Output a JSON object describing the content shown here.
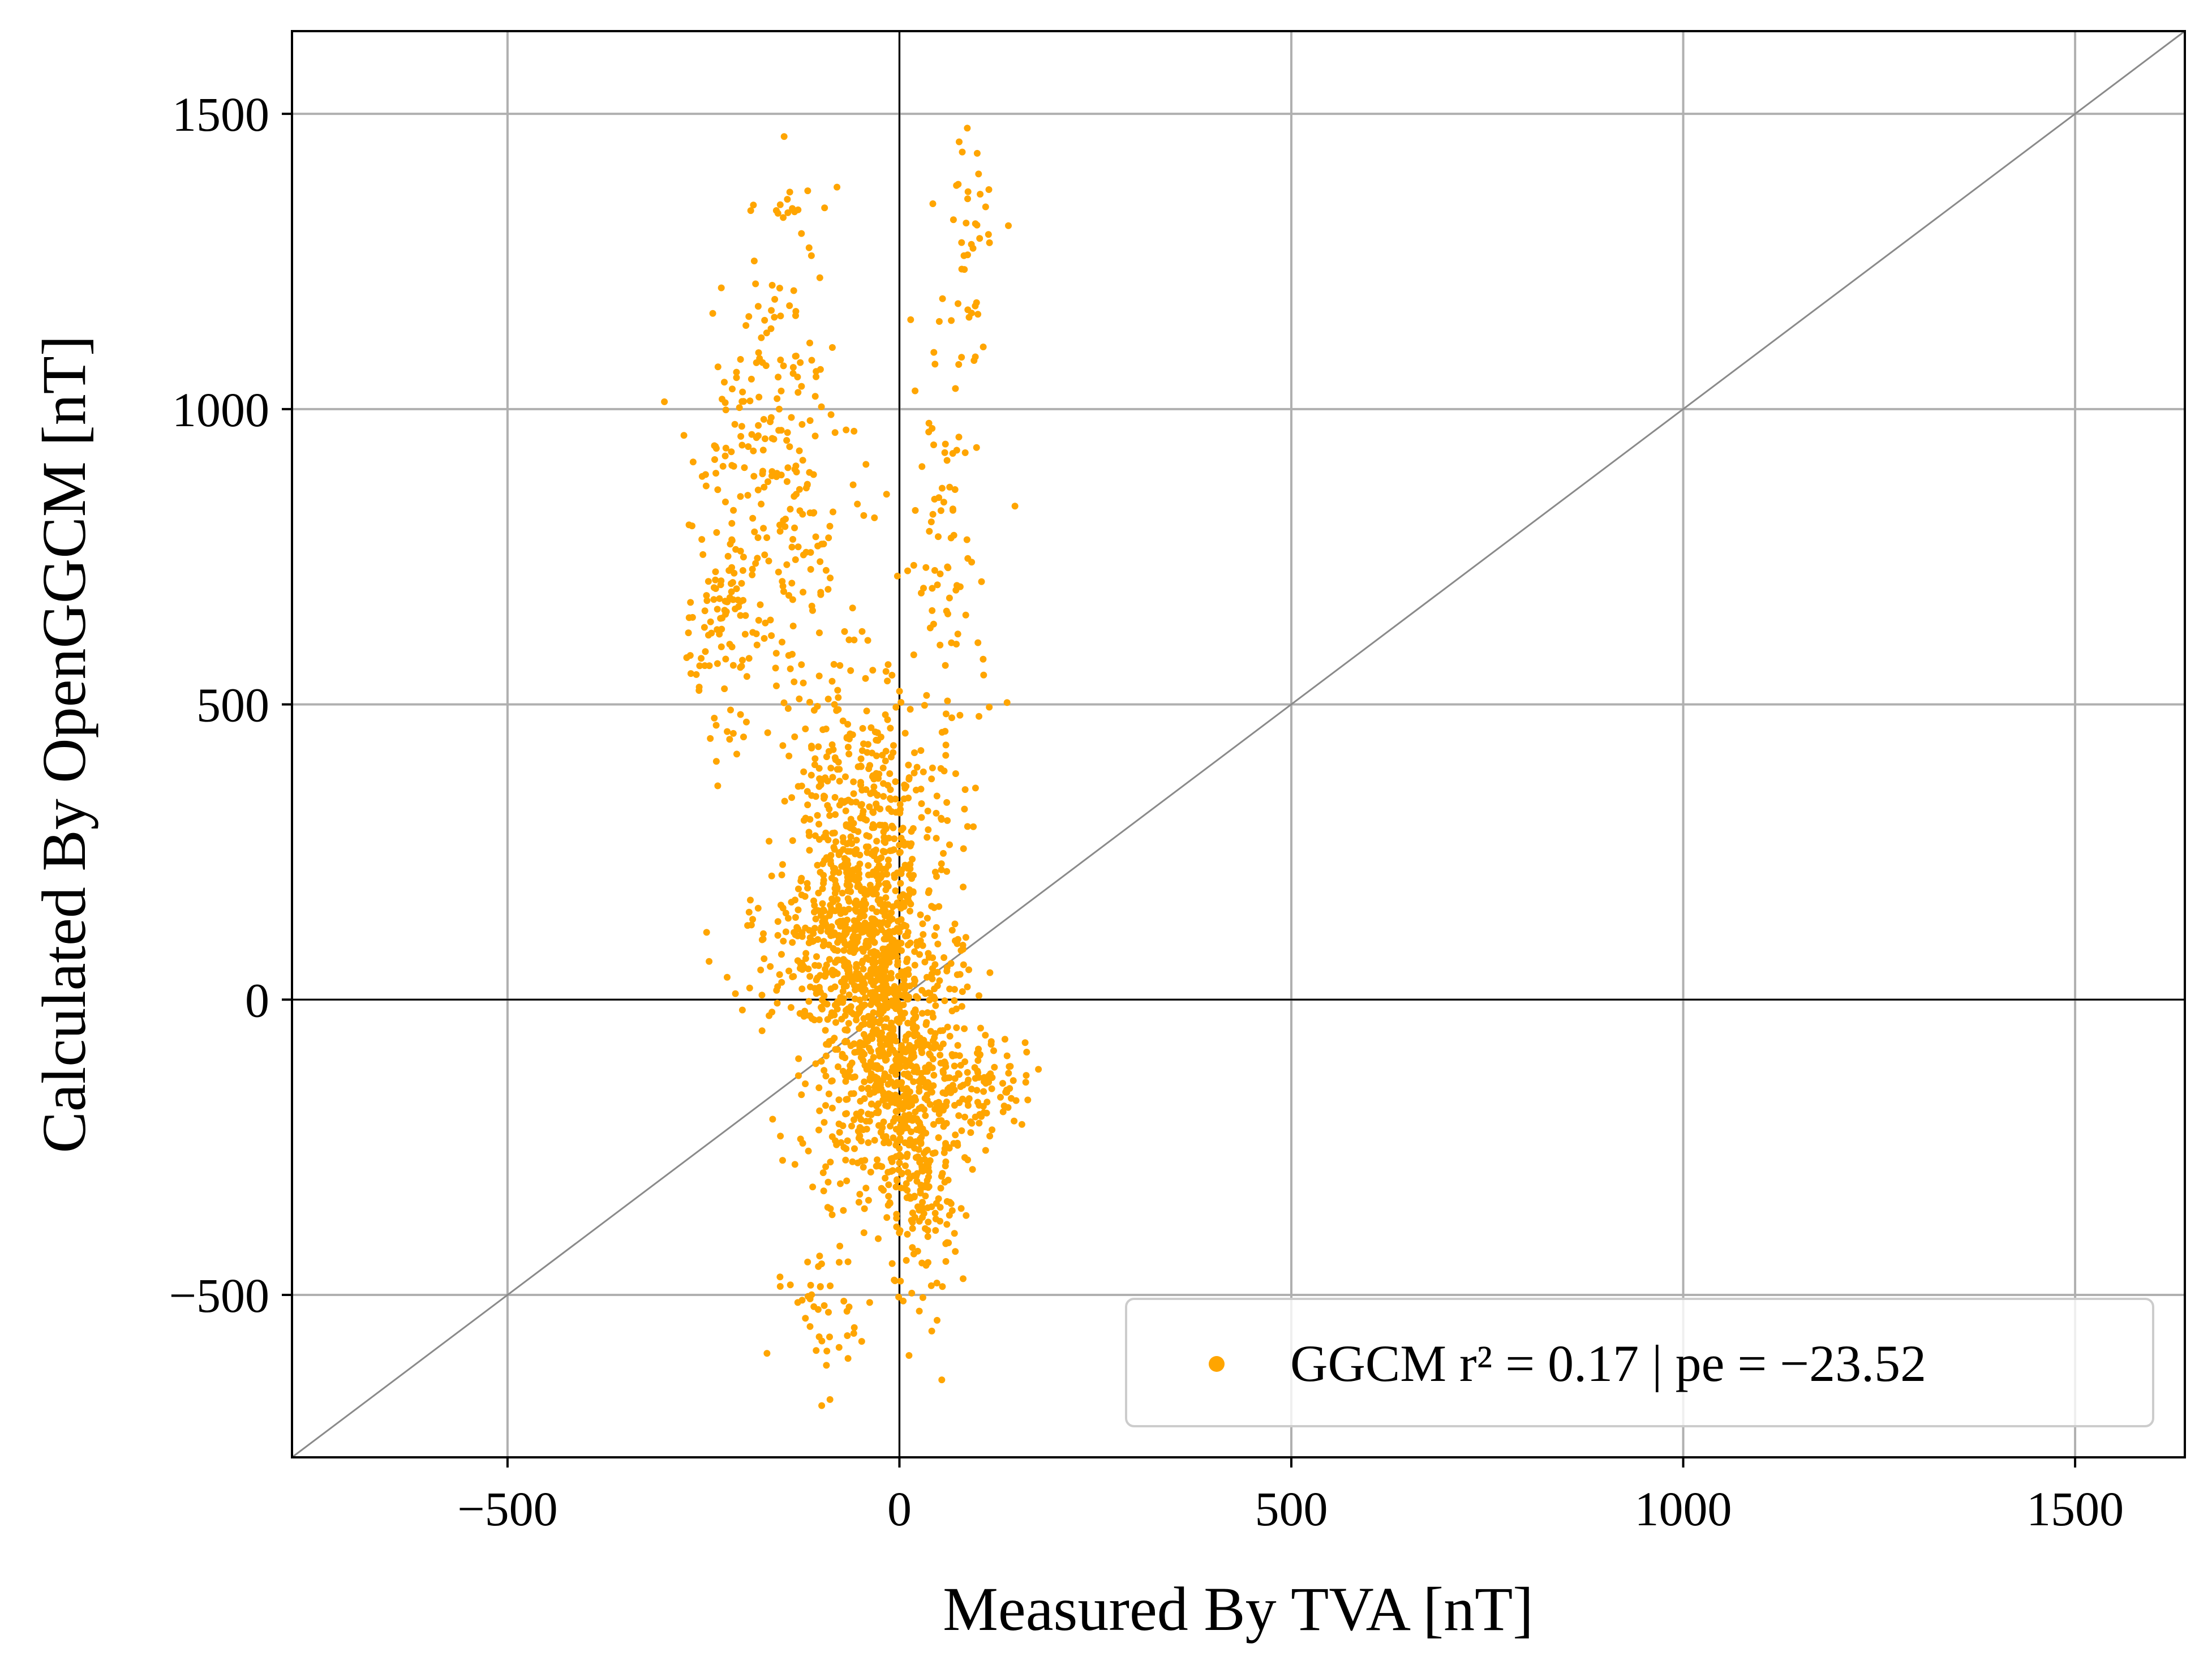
{
  "chart_data": {
    "type": "scatter",
    "xlabel": "Measured By TVA [nT]",
    "ylabel": "Calculated By OpenGGCM [nT]",
    "xlim": [
      -775,
      1640
    ],
    "ylim": [
      -775,
      1640
    ],
    "xticks": [
      -500,
      0,
      500,
      1000,
      1500
    ],
    "yticks": [
      -500,
      0,
      500,
      1000,
      1500
    ],
    "xtick_labels": [
      "−500",
      "0",
      "500",
      "1000",
      "1500"
    ],
    "ytick_labels": [
      "−500",
      "0",
      "500",
      "1000",
      "1500"
    ],
    "grid": true,
    "reference_lines": [
      "x=0",
      "y=0",
      "y=x"
    ],
    "legend_position": "lower-right",
    "series": [
      {
        "name": "GGCM r² = 0.17 | pe = −23.52",
        "color": "#FFA500",
        "clusters": [
          {
            "cx": -30,
            "cy": 50,
            "sx": 45,
            "sy": 180,
            "n": 700
          },
          {
            "cx": 0,
            "cy": -100,
            "sx": 45,
            "sy": 110,
            "n": 450
          },
          {
            "cx": -60,
            "cy": 300,
            "sx": 40,
            "sy": 150,
            "n": 300
          },
          {
            "cx": 30,
            "cy": -300,
            "sx": 25,
            "sy": 100,
            "n": 170
          },
          {
            "cx": -160,
            "cy": 900,
            "sx": 50,
            "sy": 220,
            "n": 260
          },
          {
            "cx": -230,
            "cy": 650,
            "sx": 20,
            "sy": 100,
            "n": 80
          },
          {
            "cx": 60,
            "cy": 700,
            "sx": 25,
            "sy": 300,
            "n": 110
          },
          {
            "cx": 90,
            "cy": 1300,
            "sx": 12,
            "sy": 120,
            "n": 35
          },
          {
            "cx": 110,
            "cy": -140,
            "sx": 30,
            "sy": 40,
            "n": 80
          },
          {
            "cx": -100,
            "cy": -500,
            "sx": 25,
            "sy": 80,
            "n": 45
          },
          {
            "cx": -140,
            "cy": 1340,
            "sx": 10,
            "sy": 25,
            "n": 10
          },
          {
            "cx": -100,
            "cy": 80,
            "sx": 60,
            "sy": 60,
            "n": 150
          }
        ]
      }
    ]
  }
}
